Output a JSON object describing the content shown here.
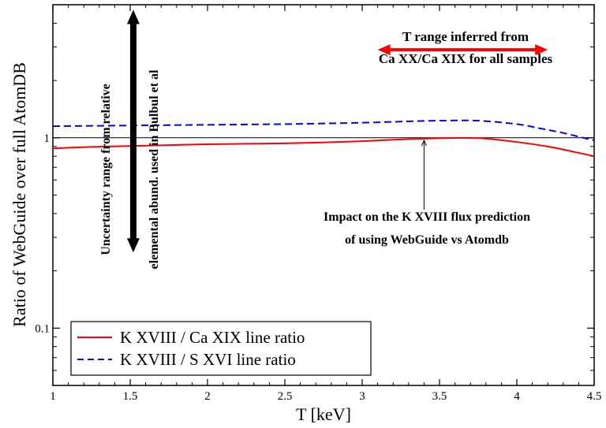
{
  "chart_data": {
    "type": "line",
    "xlabel": "T [keV]",
    "ylabel": "Ratio of WebGuide over full AtomDB",
    "xlim": [
      1,
      4.5
    ],
    "ylim": [
      0.05,
      5
    ],
    "yscale": "log",
    "x_ticks": [
      1,
      1.5,
      2,
      2.5,
      3,
      3.5,
      4,
      4.5
    ],
    "x_tick_labels": [
      "1",
      "1.5",
      "2",
      "2.5",
      "3",
      "3.5",
      "4",
      "4.5"
    ],
    "y_ticks": [
      0.1,
      1
    ],
    "y_tick_labels": [
      "0.1",
      "1"
    ],
    "reference_line": 1,
    "series": [
      {
        "name": "K XVIII / Ca XIX line ratio",
        "color": "#ff0000",
        "style": "solid",
        "x": [
          1.0,
          1.25,
          1.5,
          1.75,
          2.0,
          2.25,
          2.5,
          2.75,
          3.0,
          3.25,
          3.5,
          3.65,
          3.8,
          4.0,
          4.2,
          4.35,
          4.5
        ],
        "y": [
          0.88,
          0.895,
          0.905,
          0.915,
          0.925,
          0.93,
          0.935,
          0.945,
          0.96,
          0.98,
          0.995,
          0.998,
          0.99,
          0.95,
          0.9,
          0.85,
          0.8
        ]
      },
      {
        "name": "K XVIII / S XVI line ratio",
        "color": "#0000ff",
        "style": "dashed",
        "x": [
          1.0,
          1.5,
          2.0,
          2.5,
          3.0,
          3.3,
          3.5,
          3.75,
          4.0,
          4.15,
          4.3,
          4.45,
          4.5
        ],
        "y": [
          1.15,
          1.16,
          1.17,
          1.18,
          1.2,
          1.22,
          1.23,
          1.23,
          1.18,
          1.12,
          1.06,
          0.99,
          0.97
        ]
      }
    ],
    "annotations": {
      "t_range_text_1": "T range inferred from",
      "t_range_text_2": "Ca XX/Ca XIX for all samples",
      "t_range_x": [
        3.1,
        4.2
      ],
      "t_range_y": 2.9,
      "t_range_color": "#ff0000",
      "uncertainty_text_1": "Uncertainty range from relative",
      "uncertainty_text_2": "elemental abund. used in Bulbul et al",
      "uncertainty_x": 1.52,
      "uncertainty_y_range": [
        0.25,
        4.7
      ],
      "impact_text_1": "Impact on the K XVIII flux prediction",
      "impact_text_2": "of using WebGuide vs Atomdb",
      "impact_arrow_x": 3.4,
      "impact_arrow_from_y": 0.42,
      "impact_arrow_to_y": 0.97
    },
    "legend_position": "bottom-left"
  }
}
